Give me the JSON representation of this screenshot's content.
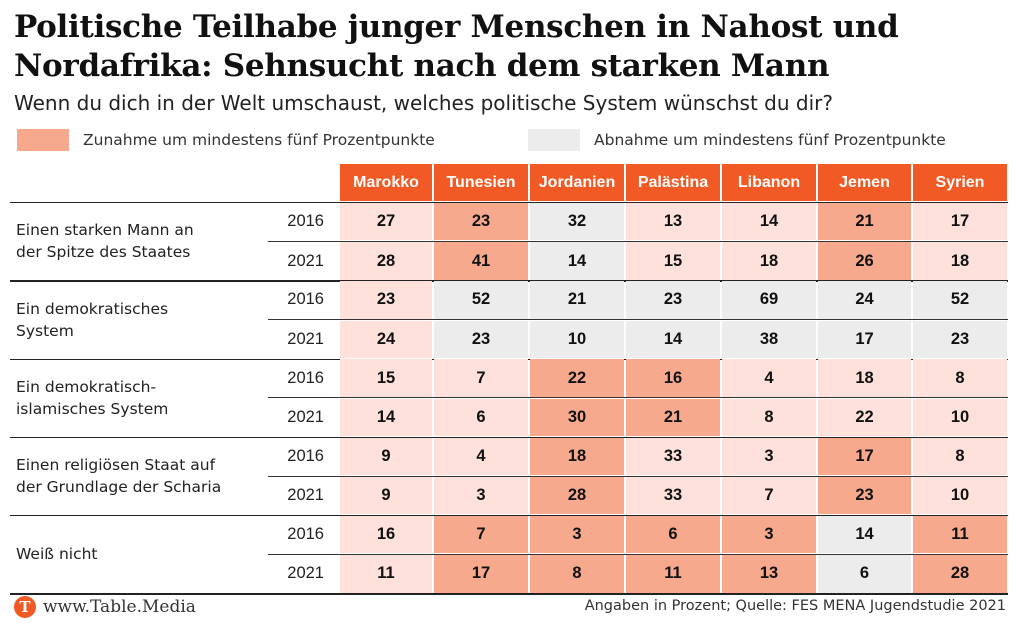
{
  "title": "Politische Teilhabe junger Menschen in Nahost und Nordafrika: Sehnsucht nach dem starken Mann",
  "subtitle": "Wenn du dich in der Welt umschaust, welches politische System wünschst du dir?",
  "legend": {
    "increase": "Zunahme um mindestens fünf Prozentpunkte",
    "decrease": "Abnahme um mindestens fünf Prozentpunkte"
  },
  "colors": {
    "header": "#f15a24",
    "increase": "#f7a98e",
    "decrease": "#ececec",
    "base": "#fde1da",
    "logo": "#f15a24"
  },
  "footer": {
    "brand": "www.Table.Media",
    "logo_letter": "T",
    "source": "Angaben in Prozent; Quelle: FES MENA Jugendstudie 2021"
  },
  "chart_data": {
    "type": "table",
    "countries": [
      "Marokko",
      "Tunesien",
      "Jordanien",
      "Palästina",
      "Libanon",
      "Jemen",
      "Syrien"
    ],
    "groups": [
      {
        "label": "Einen starken Mann an der Spitze des Staates",
        "lines": [
          "Einen starken Mann an",
          "der Spitze des Staates"
        ],
        "rows": [
          {
            "year": "2016",
            "values": [
              27,
              23,
              32,
              13,
              14,
              21,
              17
            ],
            "status": [
              "base",
              "inc",
              "dec",
              "base",
              "base",
              "inc",
              "base"
            ]
          },
          {
            "year": "2021",
            "values": [
              28,
              41,
              14,
              15,
              18,
              26,
              18
            ],
            "status": [
              "base",
              "inc",
              "dec",
              "base",
              "base",
              "inc",
              "base"
            ]
          }
        ]
      },
      {
        "label": "Ein demokratisches System",
        "lines": [
          "Ein demokratisches",
          "System"
        ],
        "rows": [
          {
            "year": "2016",
            "values": [
              23,
              52,
              21,
              23,
              69,
              24,
              52
            ],
            "status": [
              "base",
              "dec",
              "dec",
              "dec",
              "dec",
              "dec",
              "dec"
            ]
          },
          {
            "year": "2021",
            "values": [
              24,
              23,
              10,
              14,
              38,
              17,
              23
            ],
            "status": [
              "base",
              "dec",
              "dec",
              "dec",
              "dec",
              "dec",
              "dec"
            ]
          }
        ]
      },
      {
        "label": "Ein demokratisch-islamisches System",
        "lines": [
          "Ein demokratisch-",
          "islamisches System"
        ],
        "rows": [
          {
            "year": "2016",
            "values": [
              15,
              7,
              22,
              16,
              4,
              18,
              8
            ],
            "status": [
              "base",
              "base",
              "inc",
              "inc",
              "base",
              "base",
              "base"
            ]
          },
          {
            "year": "2021",
            "values": [
              14,
              6,
              30,
              21,
              8,
              22,
              10
            ],
            "status": [
              "base",
              "base",
              "inc",
              "inc",
              "base",
              "base",
              "base"
            ]
          }
        ]
      },
      {
        "label": "Einen religiösen Staat auf der Grundlage der Scharia",
        "lines": [
          "Einen religiösen Staat auf",
          "der Grundlage der Scharia"
        ],
        "rows": [
          {
            "year": "2016",
            "values": [
              9,
              4,
              18,
              33,
              3,
              17,
              8
            ],
            "status": [
              "base",
              "base",
              "inc",
              "base",
              "base",
              "inc",
              "base"
            ]
          },
          {
            "year": "2021",
            "values": [
              9,
              3,
              28,
              33,
              7,
              23,
              10
            ],
            "status": [
              "base",
              "base",
              "inc",
              "base",
              "base",
              "inc",
              "base"
            ]
          }
        ]
      },
      {
        "label": "Weiß nicht",
        "lines": [
          "Weiß nicht"
        ],
        "rows": [
          {
            "year": "2016",
            "values": [
              16,
              7,
              3,
              6,
              3,
              14,
              11
            ],
            "status": [
              "base",
              "inc",
              "inc",
              "inc",
              "inc",
              "dec",
              "inc"
            ]
          },
          {
            "year": "2021",
            "values": [
              11,
              17,
              8,
              11,
              13,
              6,
              28
            ],
            "status": [
              "base",
              "inc",
              "inc",
              "inc",
              "inc",
              "dec",
              "inc"
            ]
          }
        ]
      }
    ]
  }
}
